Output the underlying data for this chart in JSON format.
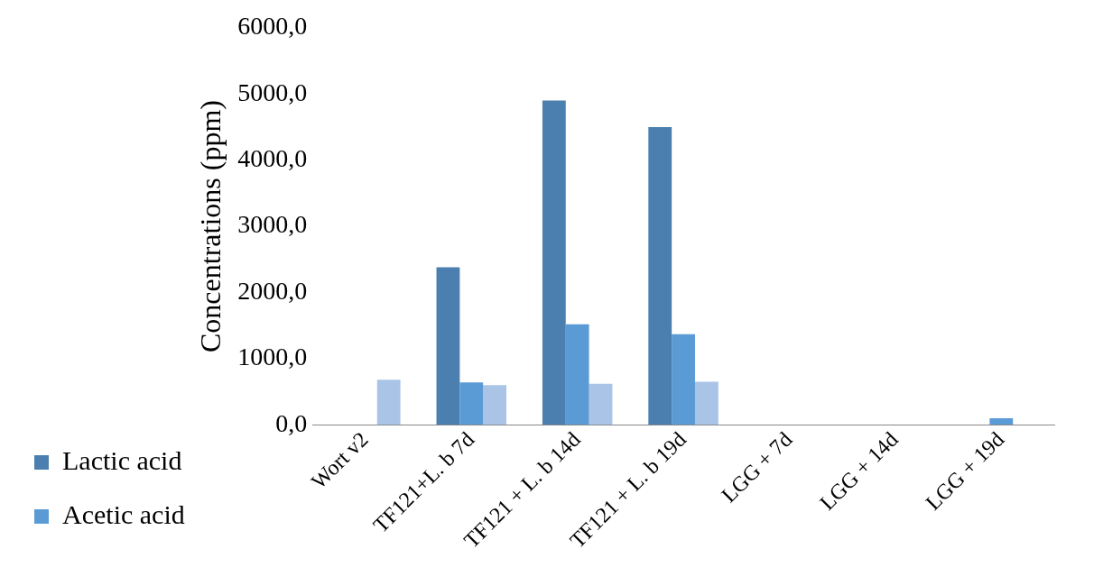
{
  "chart_data": {
    "type": "bar",
    "ylabel": "Concentrations (ppm)",
    "categories": [
      "Wort v2",
      "TF121+L. b 7d",
      "TF121 + L. b 14d",
      "TF121 + L. b 19d",
      "LGG + 7d",
      "LGG + 14d",
      "LGG + 19d"
    ],
    "series": [
      {
        "name": "Lactic acid",
        "color": "#4a7fb0",
        "values": [
          0,
          2380,
          4900,
          4500,
          0,
          0,
          0
        ]
      },
      {
        "name": "Acetic acid",
        "color": "#5b9bd5",
        "values": [
          0,
          640,
          1520,
          1370,
          0,
          0,
          100
        ]
      },
      {
        "color": "#a9c4e6",
        "values": [
          680,
          600,
          620,
          650,
          0,
          0,
          0
        ]
      }
    ],
    "ylim": [
      0,
      6000
    ],
    "yticks": [
      {
        "value": 0,
        "label": "0,0"
      },
      {
        "value": 1000,
        "label": "1000,0"
      },
      {
        "value": 2000,
        "label": "2000,0"
      },
      {
        "value": 3000,
        "label": "3000,0"
      },
      {
        "value": 4000,
        "label": "4000,0"
      },
      {
        "value": 5000,
        "label": "5000,0"
      },
      {
        "value": 6000,
        "label": "6000,0"
      }
    ],
    "grid": false,
    "legend": "left"
  }
}
